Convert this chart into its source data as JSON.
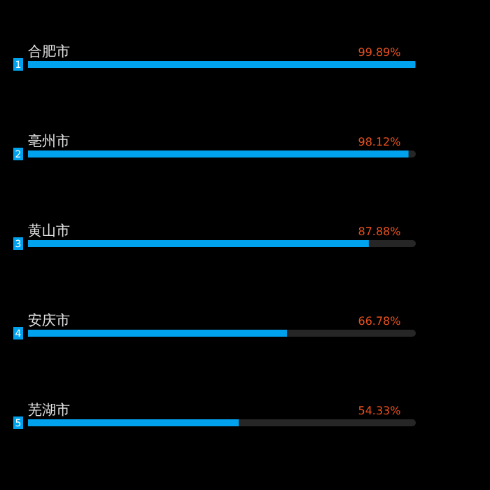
{
  "chart_data": {
    "type": "bar",
    "orientation": "horizontal",
    "categories": [
      "合肥市",
      "亳州市",
      "黄山市",
      "安庆市",
      "芜湖市"
    ],
    "values": [
      99.89,
      98.12,
      87.88,
      66.78,
      54.33
    ],
    "value_labels": [
      "99.89%",
      "98.12%",
      "87.88%",
      "66.78%",
      "54.33%"
    ],
    "color": "#00a2ed",
    "xlim": [
      0,
      100
    ],
    "annotations": [
      "1",
      "2",
      "3",
      "4",
      "5"
    ]
  }
}
